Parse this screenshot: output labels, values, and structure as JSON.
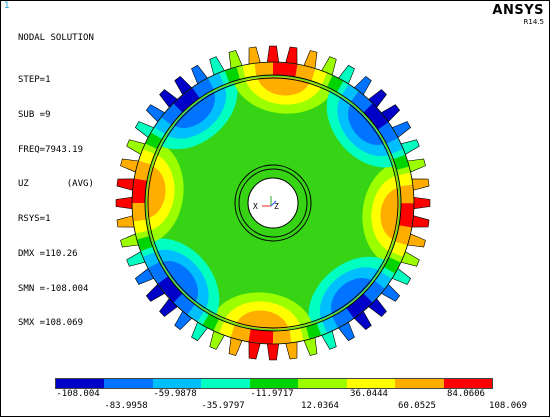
{
  "window_number": "1",
  "info": {
    "title": "NODAL SOLUTION",
    "lines": [
      "STEP=1",
      "SUB =9",
      "FREQ=7943.19",
      "UZ       (AVG)",
      "RSYS=1",
      "DMX =110.26",
      "SMN =-108.004",
      "SMX =108.069"
    ]
  },
  "brand": {
    "name": "ANSYS",
    "version": "R14.5"
  },
  "axes_triad": {
    "x_label": "X",
    "z_label": "Z"
  },
  "colors": {
    "contours": [
      "#0000c8",
      "#0073ff",
      "#00bfff",
      "#00ffc0",
      "#00d400",
      "#9bff00",
      "#ffff00",
      "#ffae00",
      "#ff0000"
    ]
  },
  "legend": {
    "top_labels": [
      "-108.004",
      "-59.9878",
      "-11.9717",
      "36.0444",
      "84.0606"
    ],
    "bottom_labels": [
      "-83.9958",
      "-35.9797",
      "12.0364",
      "60.0525",
      "108.069"
    ]
  }
}
